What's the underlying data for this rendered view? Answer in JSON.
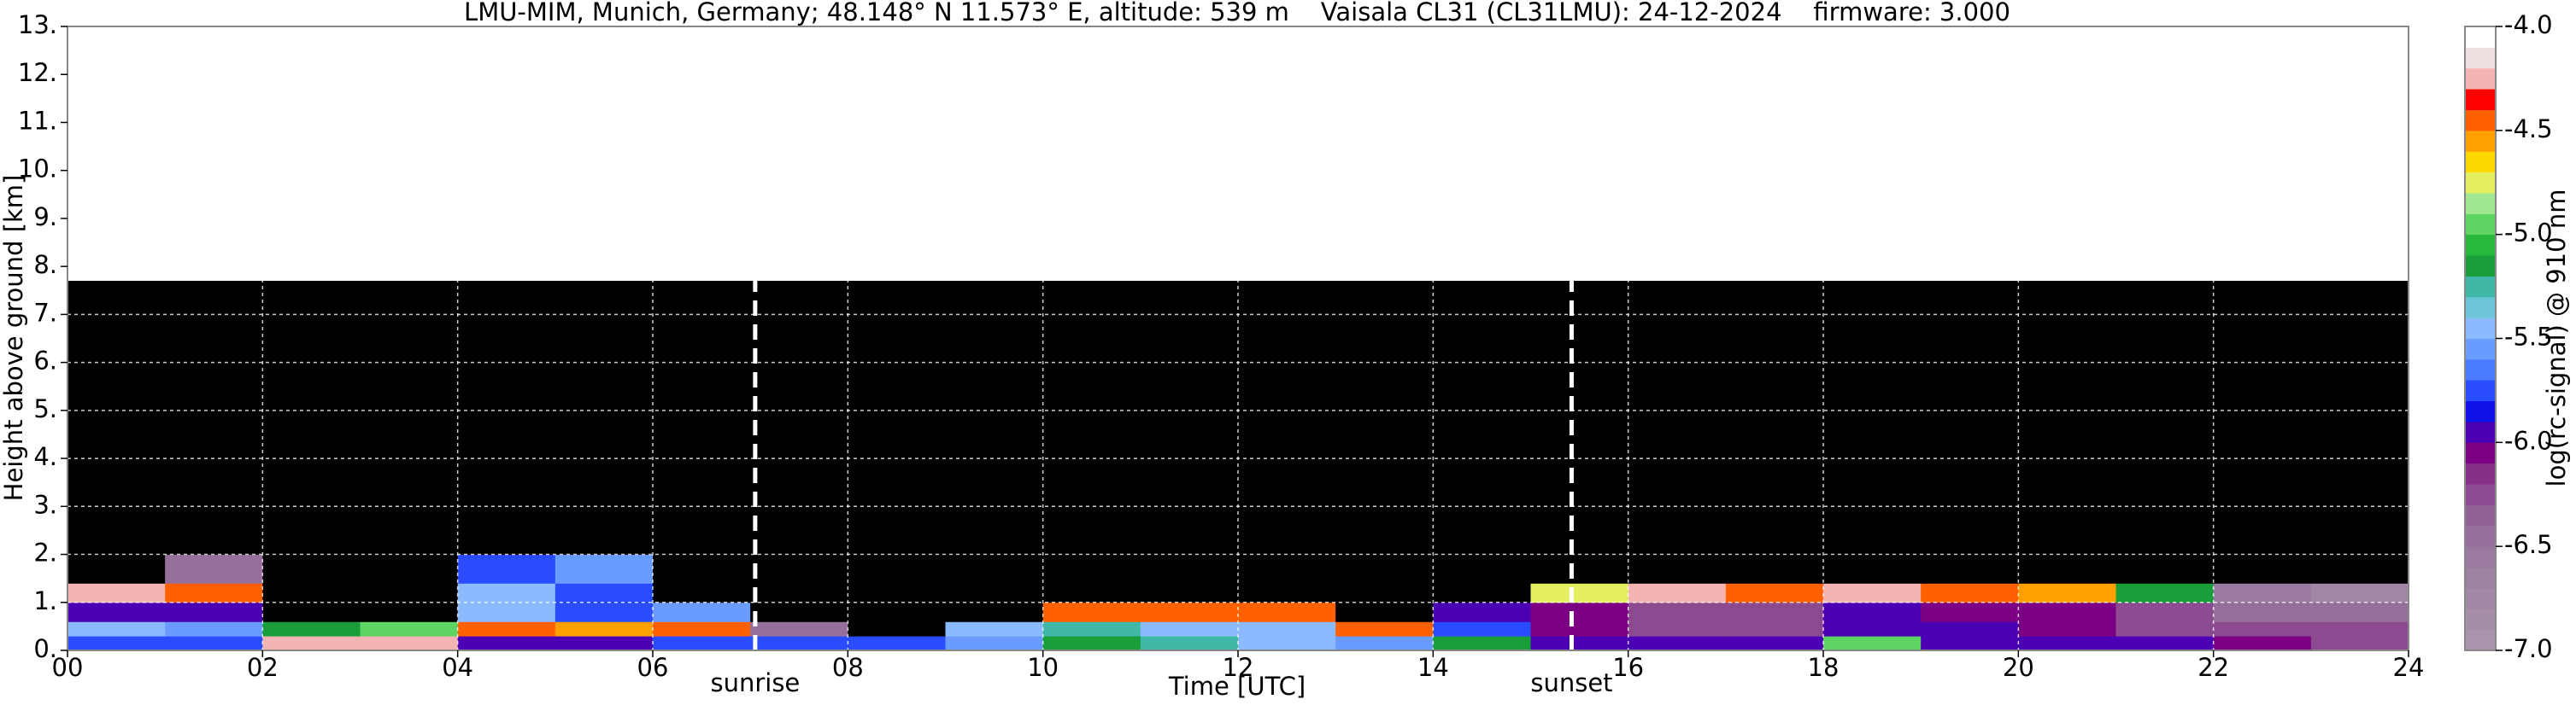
{
  "chart_data": {
    "type": "heatmap",
    "title": "LMU-MIM, Munich, Germany; 48.148° N 11.573° E, altitude: 539 m    Vaisala CL31 (CL31LMU): 24-12-2024    firmware: 3.000",
    "xlabel": "Time [UTC]",
    "ylabel": "Height above ground [km]",
    "colorbar_label": "log(rc-signal) @ 910 nm",
    "xlim": [
      0,
      24
    ],
    "ylim": [
      0,
      13
    ],
    "xticks": [
      {
        "value": 0,
        "label": "00"
      },
      {
        "value": 2,
        "label": "02"
      },
      {
        "value": 4,
        "label": "04"
      },
      {
        "value": 6,
        "label": "06"
      },
      {
        "value": 8,
        "label": "08"
      },
      {
        "value": 10,
        "label": "10"
      },
      {
        "value": 12,
        "label": "12"
      },
      {
        "value": 14,
        "label": "14"
      },
      {
        "value": 16,
        "label": "16"
      },
      {
        "value": 18,
        "label": "18"
      },
      {
        "value": 20,
        "label": "20"
      },
      {
        "value": 22,
        "label": "22"
      },
      {
        "value": 24,
        "label": "24"
      }
    ],
    "yticks": [
      {
        "value": 0,
        "label": "0."
      },
      {
        "value": 1,
        "label": "1."
      },
      {
        "value": 2,
        "label": "2."
      },
      {
        "value": 3,
        "label": "3."
      },
      {
        "value": 4,
        "label": "4."
      },
      {
        "value": 5,
        "label": "5."
      },
      {
        "value": 6,
        "label": "6."
      },
      {
        "value": 7,
        "label": "7."
      },
      {
        "value": 8,
        "label": "8."
      },
      {
        "value": 9,
        "label": "9."
      },
      {
        "value": 10,
        "label": "10."
      },
      {
        "value": 11,
        "label": "11."
      },
      {
        "value": 12,
        "label": "12."
      },
      {
        "value": 13,
        "label": "13."
      }
    ],
    "grid": true,
    "clim": [
      -7.0,
      -4.0
    ],
    "cticks": [
      {
        "value": -7.0,
        "label": "-7.0"
      },
      {
        "value": -6.5,
        "label": "-6.5"
      },
      {
        "value": -6.0,
        "label": "-6.0"
      },
      {
        "value": -5.5,
        "label": "-5.5"
      },
      {
        "value": -5.0,
        "label": "-5.0"
      },
      {
        "value": -4.5,
        "label": "-4.5"
      },
      {
        "value": -4.0,
        "label": "-4.0"
      }
    ],
    "colors": [
      "#a994ac",
      "#a68ea9",
      "#a288a6",
      "#9e82a3",
      "#9a7aa0",
      "#96709c",
      "#925f96",
      "#8c4a90",
      "#86308a",
      "#7c0084",
      "#4b00b4",
      "#1010e8",
      "#2a4cff",
      "#4a7bff",
      "#6a9cff",
      "#8bbaff",
      "#6cc6d8",
      "#3fb8a8",
      "#1a9e3a",
      "#28b83c",
      "#5ed462",
      "#a0e890",
      "#e4f060",
      "#ffd800",
      "#ffa000",
      "#ff6000",
      "#ff0000",
      "#f4b4b4",
      "#ece0e0",
      "#ffffff"
    ],
    "under_color": "#000000",
    "x_edges": [
      0,
      1,
      2,
      3,
      4,
      5,
      6,
      7,
      8,
      9,
      10,
      11,
      12,
      13,
      14,
      15,
      16,
      17,
      18,
      19,
      20,
      21,
      22,
      23,
      24
    ],
    "y_edges": [
      0,
      0.3,
      0.6,
      1.0,
      1.4,
      2.0,
      3.0,
      5.0,
      7.7
    ],
    "z": [
      [
        -5.8,
        -5.8,
        -4.3,
        -4.3,
        -5.9,
        -5.9,
        -5.8,
        -5.8,
        -5.7,
        -5.6,
        -5.2,
        -5.3,
        -5.4,
        -5.6,
        -5.2,
        -5.9,
        -5.9,
        -6.0,
        -5.0,
        -5.9,
        -6.0,
        -6.0,
        -6.1,
        -6.2
      ],
      [
        -5.4,
        -5.6,
        -5.2,
        -5.0,
        -4.4,
        -4.6,
        -4.4,
        -6.5,
        -7.5,
        -5.4,
        -5.3,
        -5.4,
        -5.5,
        -4.4,
        -5.8,
        -6.1,
        -6.2,
        -6.2,
        -5.9,
        -6.0,
        -6.1,
        -6.2,
        -6.2,
        -6.2
      ],
      [
        -6.0,
        -5.9,
        -7.5,
        -7.5,
        -5.5,
        -5.8,
        -5.6,
        -7.5,
        -7.5,
        -7.5,
        -4.5,
        -4.5,
        -4.5,
        -7.5,
        -6.0,
        -6.1,
        -6.2,
        -6.2,
        -6.0,
        -6.1,
        -6.1,
        -6.3,
        -6.4,
        -6.4
      ],
      [
        -4.3,
        -4.4,
        -7.5,
        -7.5,
        -5.5,
        -5.8,
        -7.5,
        -7.5,
        -7.5,
        -7.5,
        -7.5,
        -7.5,
        -7.5,
        -7.5,
        -7.5,
        -4.8,
        -4.3,
        -4.4,
        -4.3,
        -4.5,
        -4.6,
        -5.2,
        -6.6,
        -6.7
      ],
      [
        -7.5,
        -6.4,
        -7.5,
        -7.5,
        -5.8,
        -5.6,
        -7.5,
        -7.5,
        -7.5,
        -7.5,
        -7.5,
        -7.5,
        -7.5,
        -7.5,
        -7.5,
        -7.5,
        -7.5,
        -7.5,
        -7.5,
        -7.5,
        -7.5,
        -7.5,
        -7.5,
        -7.5
      ],
      [
        -7.5,
        -7.5,
        -7.5,
        -7.5,
        -7.5,
        -7.5,
        -7.5,
        -7.5,
        -7.5,
        -7.5,
        -7.5,
        -7.5,
        -7.5,
        -7.5,
        -7.5,
        -7.5,
        -7.5,
        -7.5,
        -7.5,
        -7.5,
        -7.5,
        -7.5,
        -7.5,
        -7.5
      ],
      [
        -7.5,
        -7.5,
        -7.5,
        -7.5,
        -7.5,
        -7.5,
        -7.5,
        -7.5,
        -7.5,
        -7.5,
        -7.5,
        -7.5,
        -7.5,
        -7.5,
        -7.5,
        -7.5,
        -7.5,
        -7.5,
        -7.5,
        -7.5,
        -7.5,
        -7.5,
        -7.5,
        -7.5
      ],
      [
        -7.5,
        -7.5,
        -7.5,
        -7.5,
        -7.5,
        -7.5,
        -7.5,
        -7.5,
        -7.5,
        -7.5,
        -7.5,
        -7.5,
        -7.5,
        -7.5,
        -7.5,
        -7.5,
        -7.5,
        -7.5,
        -7.5,
        -7.5,
        -7.5,
        -7.5,
        -7.5,
        -7.5
      ]
    ],
    "annotations": [
      {
        "text": "sunrise",
        "x": 7.05
      },
      {
        "text": "sunset",
        "x": 15.42
      }
    ]
  }
}
